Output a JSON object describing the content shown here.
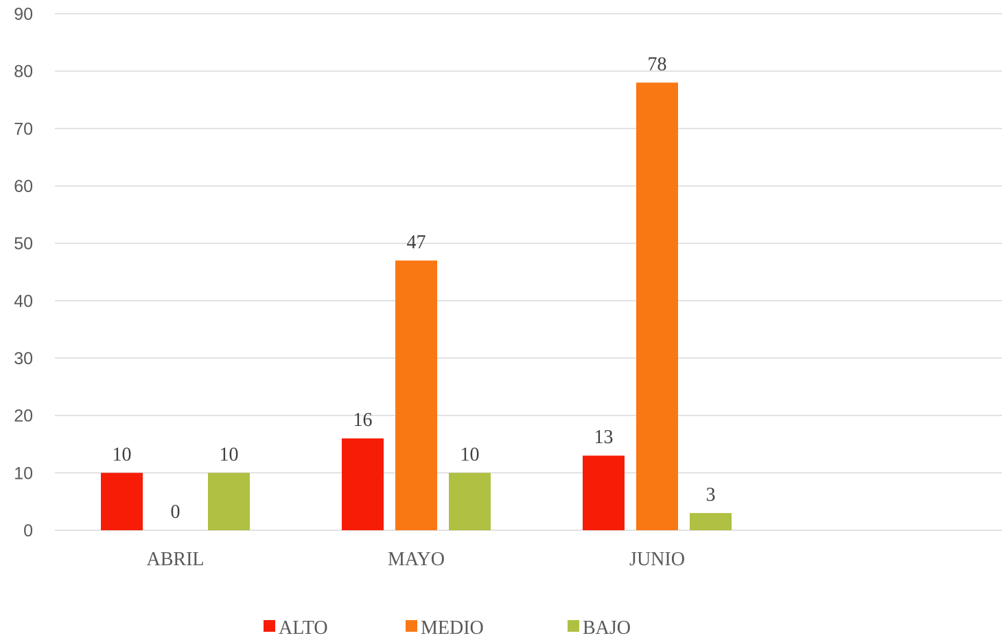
{
  "chart_data": {
    "type": "bar",
    "categories": [
      "ABRIL",
      "MAYO",
      "JUNIO"
    ],
    "series": [
      {
        "name": "ALTO",
        "color": "#f71c05",
        "values": [
          10,
          16,
          13
        ]
      },
      {
        "name": "MEDIO",
        "color": "#fa7814",
        "values": [
          0,
          47,
          78
        ]
      },
      {
        "name": "BAJO",
        "color": "#b0c042",
        "values": [
          10,
          10,
          3
        ]
      }
    ],
    "ylim": [
      0,
      90
    ],
    "yticks": [
      0,
      10,
      20,
      30,
      40,
      50,
      60,
      70,
      80,
      90
    ],
    "grid": true,
    "data_labels": true,
    "legend_position": "bottom"
  }
}
